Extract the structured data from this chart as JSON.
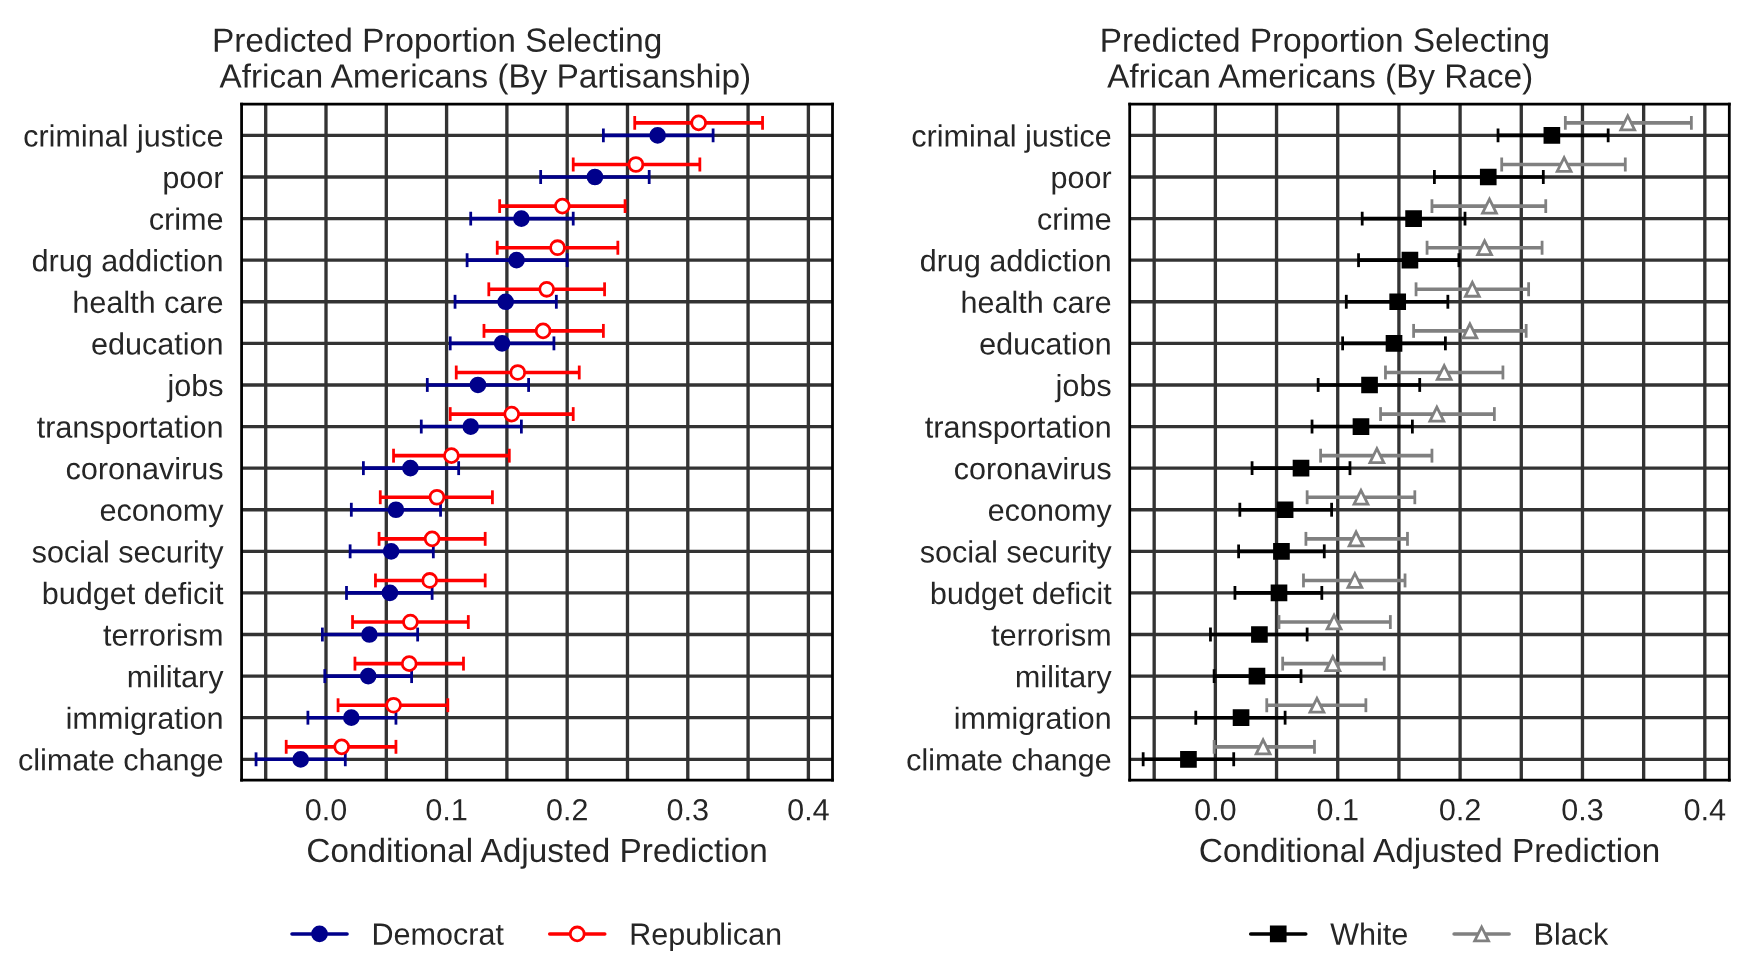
{
  "chart_data": [
    {
      "type": "scatter",
      "orientation": "horizontal",
      "title": "Predicted Proportion Selecting\n African Americans (By Partisanship)",
      "xlabel": "Conditional Adjusted Prediction",
      "categories": [
        "criminal justice",
        "poor",
        "crime",
        "drug addiction",
        "health care",
        "education",
        "jobs",
        "transportation",
        "coronavirus",
        "economy",
        "social security",
        "budget deficit",
        "terrorism",
        "military",
        "immigration",
        "climate change"
      ],
      "series": [
        {
          "name": "Democrat",
          "color": "#00008b",
          "marker": "circle",
          "values": [
            0.275,
            0.223,
            0.162,
            0.158,
            0.149,
            0.146,
            0.126,
            0.12,
            0.07,
            0.058,
            0.054,
            0.053,
            0.036,
            0.035,
            0.021,
            -0.021
          ],
          "errors": [
            [
              0.23,
              0.321
            ],
            [
              0.178,
              0.268
            ],
            [
              0.12,
              0.205
            ],
            [
              0.117,
              0.2
            ],
            [
              0.107,
              0.191
            ],
            [
              0.103,
              0.189
            ],
            [
              0.084,
              0.168
            ],
            [
              0.079,
              0.162
            ],
            [
              0.031,
              0.11
            ],
            [
              0.021,
              0.095
            ],
            [
              0.02,
              0.089
            ],
            [
              0.017,
              0.088
            ],
            [
              -0.003,
              0.076
            ],
            [
              -0.001,
              0.071
            ],
            [
              -0.015,
              0.058
            ],
            [
              -0.058,
              0.016
            ]
          ]
        },
        {
          "name": "Republican",
          "color": "#ff0000",
          "marker": "circle",
          "values": [
            0.309,
            0.257,
            0.196,
            0.192,
            0.183,
            0.18,
            0.159,
            0.154,
            0.104,
            0.092,
            0.088,
            0.086,
            0.07,
            0.069,
            0.056,
            0.013
          ],
          "errors": [
            [
              0.256,
              0.362
            ],
            [
              0.205,
              0.31
            ],
            [
              0.144,
              0.248
            ],
            [
              0.142,
              0.242
            ],
            [
              0.135,
              0.231
            ],
            [
              0.131,
              0.23
            ],
            [
              0.108,
              0.21
            ],
            [
              0.103,
              0.205
            ],
            [
              0.056,
              0.152
            ],
            [
              0.045,
              0.138
            ],
            [
              0.044,
              0.132
            ],
            [
              0.041,
              0.132
            ],
            [
              0.022,
              0.118
            ],
            [
              0.024,
              0.114
            ],
            [
              0.01,
              0.101
            ],
            [
              -0.033,
              0.058
            ]
          ]
        }
      ],
      "xlim": [
        -0.07,
        0.42
      ],
      "xticks": [
        {
          "value": -0.05,
          "label": null
        },
        {
          "value": 0,
          "label": "0.0"
        },
        {
          "value": 0.05,
          "label": null
        },
        0.1,
        {
          "value": 0.15,
          "label": null
        },
        0.2,
        {
          "value": 0.25,
          "label": null
        },
        0.3,
        {
          "value": 0.35,
          "label": null
        },
        0.4
      ],
      "grid": true,
      "legend": "bottom"
    },
    {
      "type": "scatter",
      "orientation": "horizontal",
      "title": "Predicted Proportion Selecting\n African Americans (By Race)",
      "xlabel": "Conditional Adjusted Prediction",
      "categories": [
        "criminal justice",
        "poor",
        "crime",
        "drug addiction",
        "health care",
        "education",
        "jobs",
        "transportation",
        "coronavirus",
        "economy",
        "social security",
        "budget deficit",
        "terrorism",
        "military",
        "immigration",
        "climate change"
      ],
      "series": [
        {
          "name": "White",
          "color": "#000000",
          "marker": "square",
          "values": [
            0.275,
            0.223,
            0.162,
            0.159,
            0.149,
            0.146,
            0.126,
            0.119,
            0.07,
            0.057,
            0.054,
            0.052,
            0.036,
            0.034,
            0.021,
            -0.022
          ],
          "errors": [
            [
              0.231,
              0.321
            ],
            [
              0.179,
              0.268
            ],
            [
              0.12,
              0.204
            ],
            [
              0.117,
              0.199
            ],
            [
              0.107,
              0.19
            ],
            [
              0.104,
              0.188
            ],
            [
              0.084,
              0.167
            ],
            [
              0.079,
              0.161
            ],
            [
              0.03,
              0.11
            ],
            [
              0.02,
              0.095
            ],
            [
              0.019,
              0.089
            ],
            [
              0.016,
              0.087
            ],
            [
              -0.004,
              0.075
            ],
            [
              -0.001,
              0.07
            ],
            [
              -0.016,
              0.057
            ],
            [
              -0.059,
              0.015
            ]
          ]
        },
        {
          "name": "Black",
          "color": "#808080",
          "marker": "triangle",
          "values": [
            0.337,
            0.285,
            0.224,
            0.22,
            0.21,
            0.208,
            0.187,
            0.181,
            0.132,
            0.119,
            0.115,
            0.114,
            0.097,
            0.096,
            0.083,
            0.039
          ],
          "errors": [
            [
              0.286,
              0.389
            ],
            [
              0.234,
              0.335
            ],
            [
              0.177,
              0.27
            ],
            [
              0.173,
              0.267
            ],
            [
              0.164,
              0.256
            ],
            [
              0.162,
              0.254
            ],
            [
              0.139,
              0.235
            ],
            [
              0.135,
              0.228
            ],
            [
              0.086,
              0.177
            ],
            [
              0.075,
              0.163
            ],
            [
              0.074,
              0.157
            ],
            [
              0.072,
              0.155
            ],
            [
              0.052,
              0.143
            ],
            [
              0.055,
              0.138
            ],
            [
              0.042,
              0.123
            ],
            [
              -0.001,
              0.081
            ]
          ]
        }
      ],
      "xlim": [
        -0.07,
        0.42
      ],
      "xticks": [
        {
          "value": -0.05,
          "label": null
        },
        {
          "value": 0,
          "label": "0.0"
        },
        {
          "value": 0.05,
          "label": null
        },
        0.1,
        {
          "value": 0.15,
          "label": null
        },
        0.2,
        {
          "value": 0.25,
          "label": null
        },
        0.3,
        {
          "value": 0.35,
          "label": null
        },
        0.4
      ],
      "grid": true,
      "legend": "bottom"
    }
  ]
}
